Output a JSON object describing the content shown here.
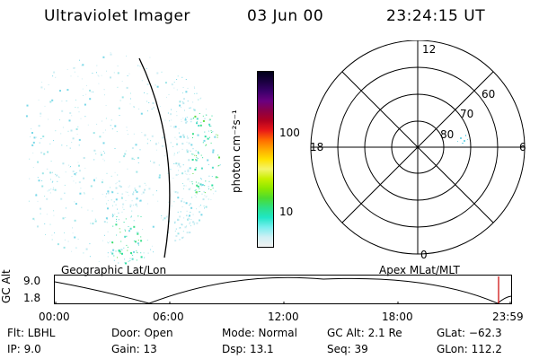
{
  "header": {
    "instrument": "Ultraviolet Imager",
    "date": "03 Jun 00",
    "time": "23:24:15 UT"
  },
  "left_panel": {
    "caption": "Geographic Lat/Lon"
  },
  "right_panel": {
    "caption": "Apex MLat/MLT",
    "mlt_labels": {
      "top": "12",
      "left": "18",
      "right": "6",
      "bottom": "0"
    },
    "lat_labels": [
      "60",
      "70",
      "80"
    ]
  },
  "colorbar": {
    "unit_label": "photon cm⁻²s⁻¹",
    "tick_labels": [
      "100",
      "10"
    ],
    "colors": [
      "#000018",
      "#1a0040",
      "#3a006a",
      "#6a0080",
      "#8a0048",
      "#b00020",
      "#e81818",
      "#ff6a00",
      "#ffaa00",
      "#ffe000",
      "#f4f46a",
      "#c8f000",
      "#8ce800",
      "#4cdc30",
      "#2ce088",
      "#20e6c6",
      "#7aeeee",
      "#cfeff4",
      "#f2f2f2"
    ]
  },
  "timeline": {
    "axis_label": "GC Alt",
    "y_ticks": [
      "9.0",
      "1.8"
    ],
    "x_ticks": [
      "00:00",
      "06:00",
      "12:00",
      "18:00",
      "23:59"
    ],
    "marker_time": "23:24"
  },
  "status": {
    "flt": "Flt: LBHL",
    "ip": "IP:  9.0",
    "door": "Door: Open",
    "gain": "Gain: 13",
    "mode": "Mode: Normal",
    "dsp": "Dsp:   13.1",
    "gcalt": "GC Alt: 2.1 Re",
    "seq": "Seq: 39",
    "glat": "GLat: −62.3",
    "glon": "GLon: 112.2"
  }
}
